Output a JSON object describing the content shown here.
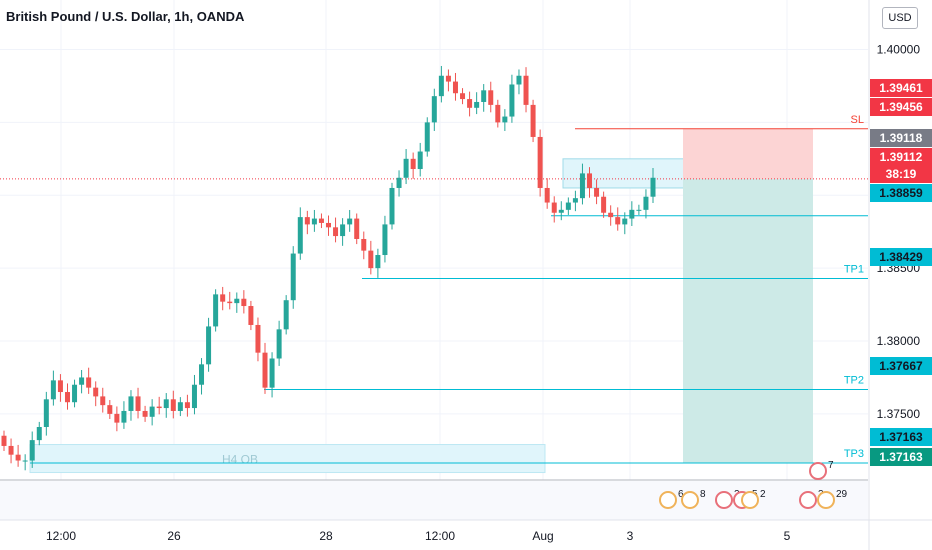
{
  "header": {
    "title": "British Pound / U.S. Dollar, 1h, OANDA",
    "currency_button": "USD"
  },
  "colors": {
    "up": "#26a69a",
    "down": "#ef5350",
    "level": "#00bcd4",
    "sl": "#f44336",
    "risk_fill": "#fcd4d4",
    "reward_fill": "#cdeae7",
    "ob_fill": "#e0f5fb"
  },
  "chart_data": {
    "type": "candlestick",
    "title": "British Pound / U.S. Dollar, 1h, OANDA",
    "currency": "USD",
    "y_ticks": [
      "1.40000",
      "1.38500",
      "1.38000",
      "1.37500"
    ],
    "x_ticks": [
      "12:00",
      "26",
      "28",
      "12:00",
      "Aug",
      "3",
      "5"
    ],
    "ylim": [
      1.369,
      1.401
    ],
    "grid": true,
    "closes": [
      1.3728,
      1.3722,
      1.3718,
      1.3718,
      1.3732,
      1.3741,
      1.376,
      1.3773,
      1.3765,
      1.3758,
      1.377,
      1.3775,
      1.3768,
      1.3762,
      1.3756,
      1.375,
      1.3744,
      1.3752,
      1.3762,
      1.3752,
      1.3748,
      1.3755,
      1.3754,
      1.376,
      1.3752,
      1.3758,
      1.3754,
      1.377,
      1.3784,
      1.381,
      1.3832,
      1.3827,
      1.3826,
      1.3829,
      1.3824,
      1.3811,
      1.3792,
      1.3768,
      1.3788,
      1.3808,
      1.3828,
      1.386,
      1.3885,
      1.388,
      1.3884,
      1.3881,
      1.3878,
      1.3872,
      1.388,
      1.3884,
      1.387,
      1.3862,
      1.385,
      1.3859,
      1.388,
      1.3905,
      1.3912,
      1.3925,
      1.3918,
      1.393,
      1.395,
      1.3968,
      1.3982,
      1.3978,
      1.397,
      1.3966,
      1.396,
      1.3964,
      1.3972,
      1.3962,
      1.395,
      1.3954,
      1.3976,
      1.3982,
      1.3962,
      1.394,
      1.3905,
      1.3895,
      1.3888,
      1.389,
      1.3895,
      1.3898,
      1.3915,
      1.3905,
      1.3899,
      1.3888,
      1.3885,
      1.388,
      1.3884,
      1.389,
      1.389,
      1.3899,
      1.3912
    ],
    "levels": [
      {
        "label": "SL",
        "price": "1.39456",
        "color": "#f44336"
      },
      {
        "label": "",
        "price": "1.38859",
        "color": "#00bcd4"
      },
      {
        "label": "TP1",
        "price": "1.38429",
        "color": "#00bcd4"
      },
      {
        "label": "TP2",
        "price": "1.37667",
        "color": "#00bcd4"
      },
      {
        "label": "TP3",
        "price": "1.37163",
        "color": "#00bcd4"
      }
    ],
    "price_labels": [
      {
        "text": "1.39461",
        "bg": "#f23645",
        "fg": "#ffffff"
      },
      {
        "text": "1.39456",
        "bg": "#f23645",
        "fg": "#ffffff"
      },
      {
        "text": "1.39118",
        "bg": "#787b86",
        "fg": "#ffffff"
      },
      {
        "text": "1.39112",
        "bg": "#f23645",
        "fg": "#ffffff"
      },
      {
        "text": "38:19",
        "bg": "#f23645",
        "fg": "#ffffff"
      },
      {
        "text": "1.38859",
        "bg": "#00bcd4",
        "fg": "#131722"
      },
      {
        "text": "1.38429",
        "bg": "#00bcd4",
        "fg": "#131722"
      },
      {
        "text": "1.37667",
        "bg": "#00bcd4",
        "fg": "#131722"
      },
      {
        "text": "1.37163",
        "bg": "#00bcd4",
        "fg": "#131722"
      },
      {
        "text": "1.37163",
        "bg": "#089981",
        "fg": "#ffffff"
      }
    ],
    "zones": [
      {
        "label": "H4 OB"
      }
    ],
    "events": [
      {
        "text": "6"
      },
      {
        "text": "8"
      },
      {
        "text": "2"
      },
      {
        "text": "5"
      },
      {
        "text": "2"
      },
      {
        "text": "7"
      },
      {
        "text": "3"
      },
      {
        "text": "29"
      }
    ]
  }
}
